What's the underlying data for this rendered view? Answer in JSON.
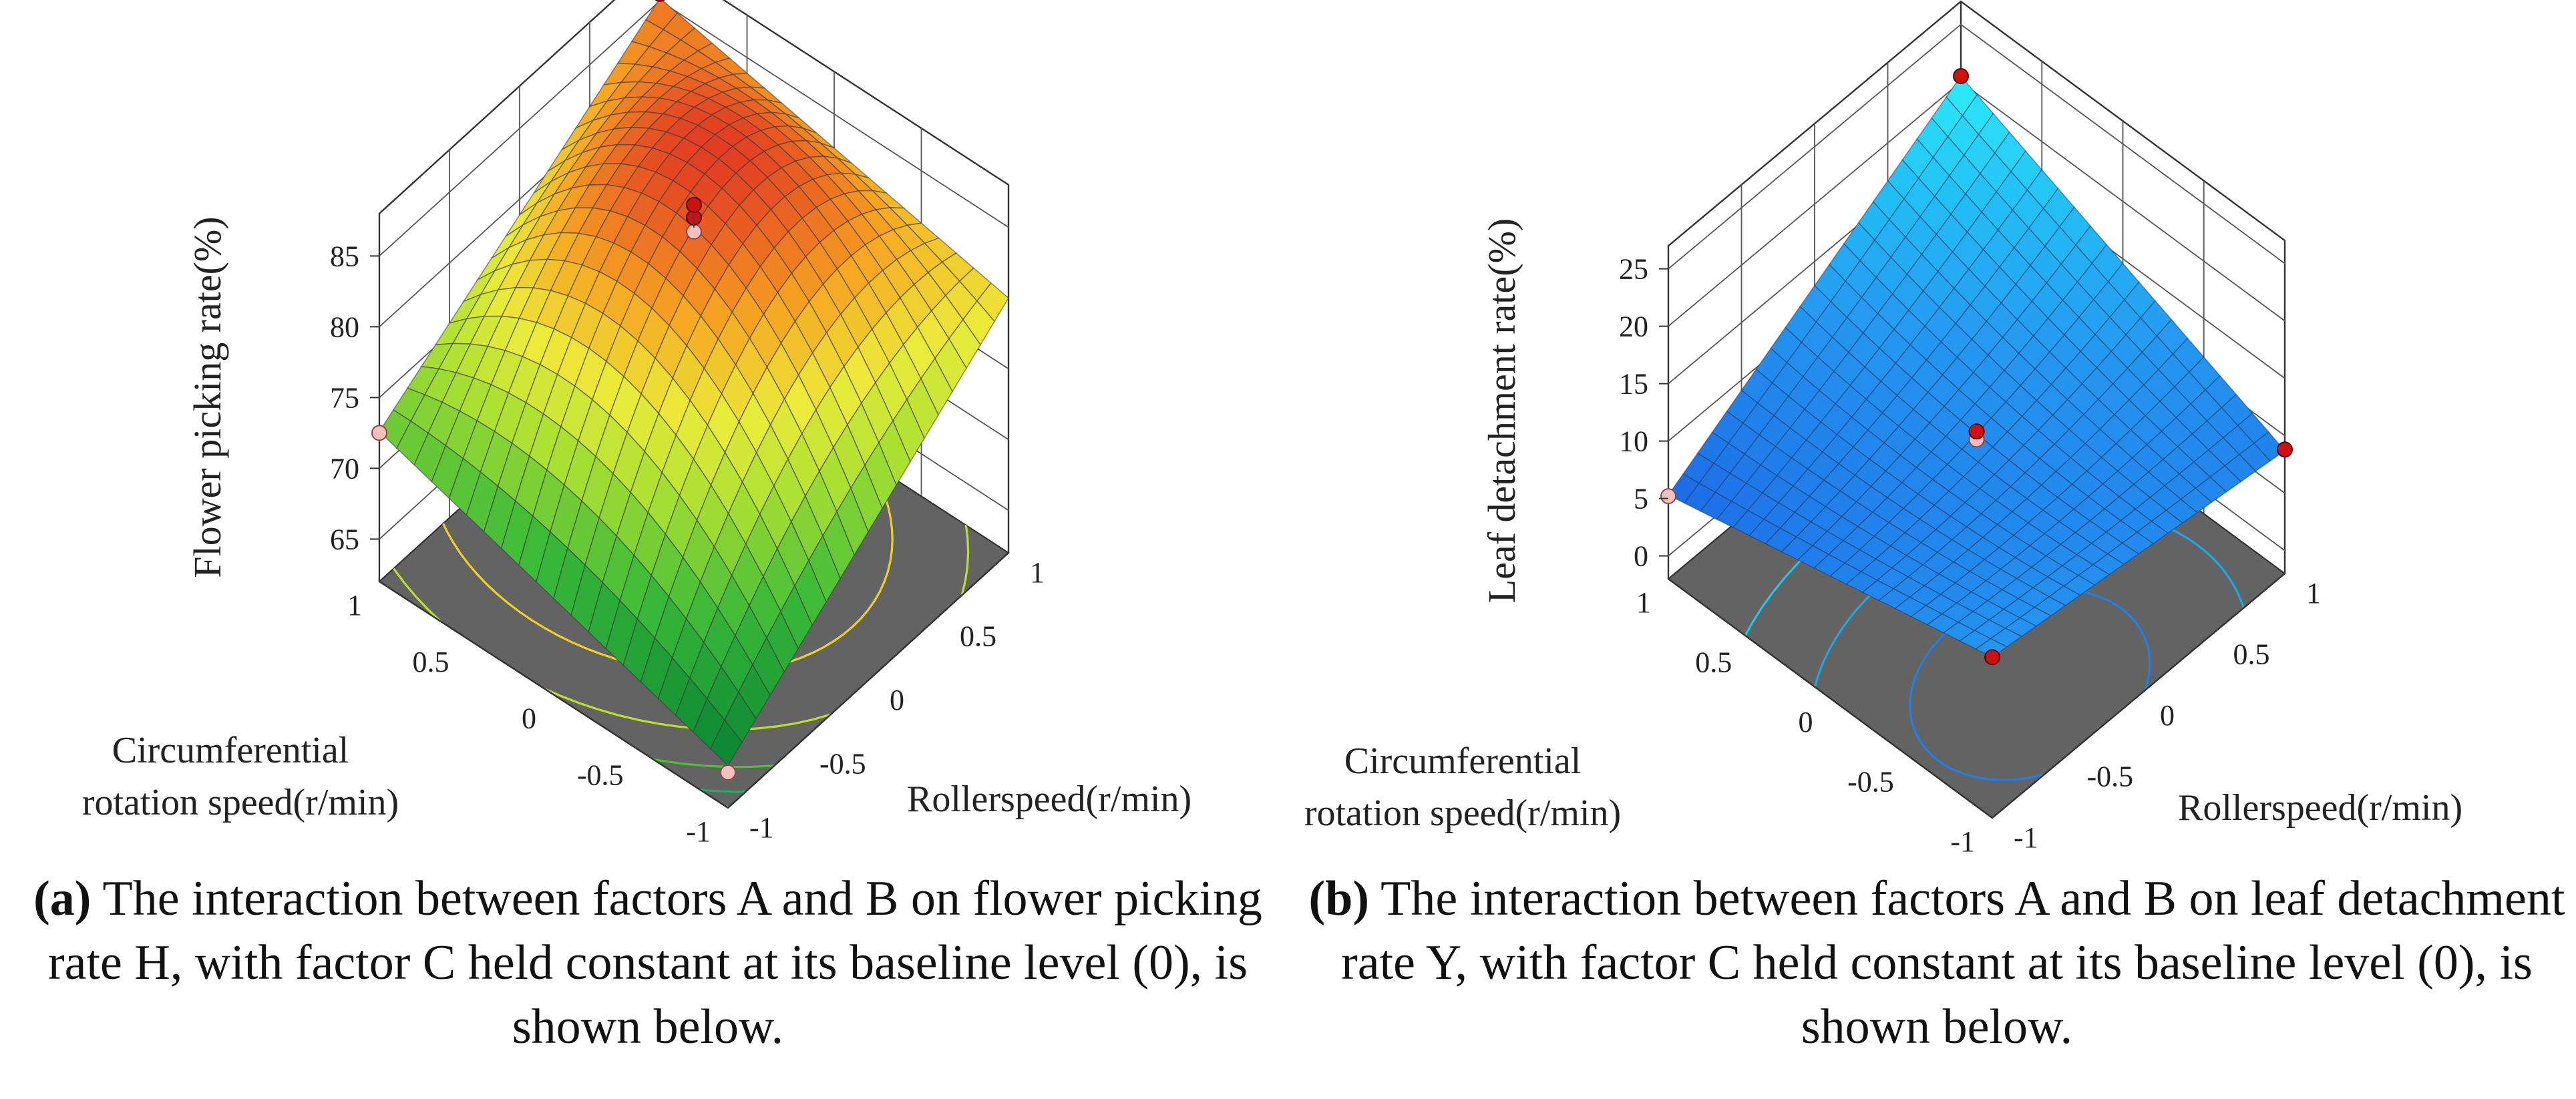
{
  "figures": [
    {
      "id": "a",
      "caption": {
        "label": "(a)",
        "text": "The interaction between factors A and B on flower picking rate H, with factor C held constant at its baseline level (0), is shown below."
      }
    },
    {
      "id": "b",
      "caption": {
        "label": "(b)",
        "text": "The interaction between factors A and B on leaf detachment rate Y, with factor C held constant at its baseline level (0), is shown below."
      }
    }
  ],
  "chart_data": [
    {
      "type": "surface3d",
      "title": "",
      "xlabel": "Rollerspeed(r/min)",
      "ylabel": "Circumferential rotation speed(r/min)",
      "zlabel": "Flower picking rate(%)",
      "x_range": [
        -1,
        1
      ],
      "y_range": [
        -1,
        1
      ],
      "zlim": [
        62,
        88
      ],
      "x_ticks": [
        "-1",
        "-0.5",
        "0",
        "0.5",
        "1"
      ],
      "y_ticks": [
        "-1",
        "-0.5",
        "0",
        "0.5",
        "1"
      ],
      "z_ticks": [
        "65",
        "70",
        "75",
        "80",
        "85"
      ],
      "corner_values": {
        "x_-1_y_-1": 65.0,
        "x_1_y_-1": 80.0,
        "x_-1_y_1": 72.6,
        "x_1_y_1": 85.2,
        "x_0_y_0": 86.0
      },
      "design_points": [
        {
          "x": -1,
          "y": -1,
          "z": 64.5
        },
        {
          "x": 1,
          "y": 1,
          "z": 85.5
        },
        {
          "x": -1,
          "y": 1,
          "z": 72.5
        },
        {
          "x": 0,
          "y": 0,
          "z": 85.7
        },
        {
          "x": 0,
          "y": 0,
          "z": 86.7
        },
        {
          "x": 0,
          "y": 0,
          "z": 87.6
        }
      ],
      "colormap": "green-yellow-red",
      "contours": "projected on floor"
    },
    {
      "type": "surface3d",
      "title": "",
      "xlabel": "Rollerspeed(r/min)",
      "ylabel": "Circumferential rotation speed(r/min)",
      "zlabel": "Leaf detachment rate(%)",
      "x_range": [
        -1,
        1
      ],
      "y_range": [
        -1,
        1
      ],
      "zlim": [
        -2,
        27
      ],
      "x_ticks": [
        "-1",
        "-0.5",
        "0",
        "0.5",
        "1"
      ],
      "y_ticks": [
        "-1",
        "-0.5",
        "0",
        "0.5",
        "1"
      ],
      "z_ticks": [
        "0",
        "5",
        "10",
        "15",
        "20",
        "25"
      ],
      "corner_values": {
        "x_-1_y_-1": 12.0,
        "x_1_y_-1": 8.7,
        "x_-1_y_1": 5.3,
        "x_1_y_1": 20.5,
        "x_0_y_0": 10.4
      },
      "design_points": [
        {
          "x": -1,
          "y": -1,
          "z": 12.0
        },
        {
          "x": 1,
          "y": 1,
          "z": 20.5
        },
        {
          "x": -1,
          "y": 1,
          "z": 5.2
        },
        {
          "x": 1,
          "y": -1,
          "z": 8.8
        },
        {
          "x": 0,
          "y": 0,
          "z": 9.9
        },
        {
          "x": 0,
          "y": 0,
          "z": 10.6
        }
      ],
      "colormap": "blue-cyan",
      "contours": "projected on floor"
    }
  ]
}
